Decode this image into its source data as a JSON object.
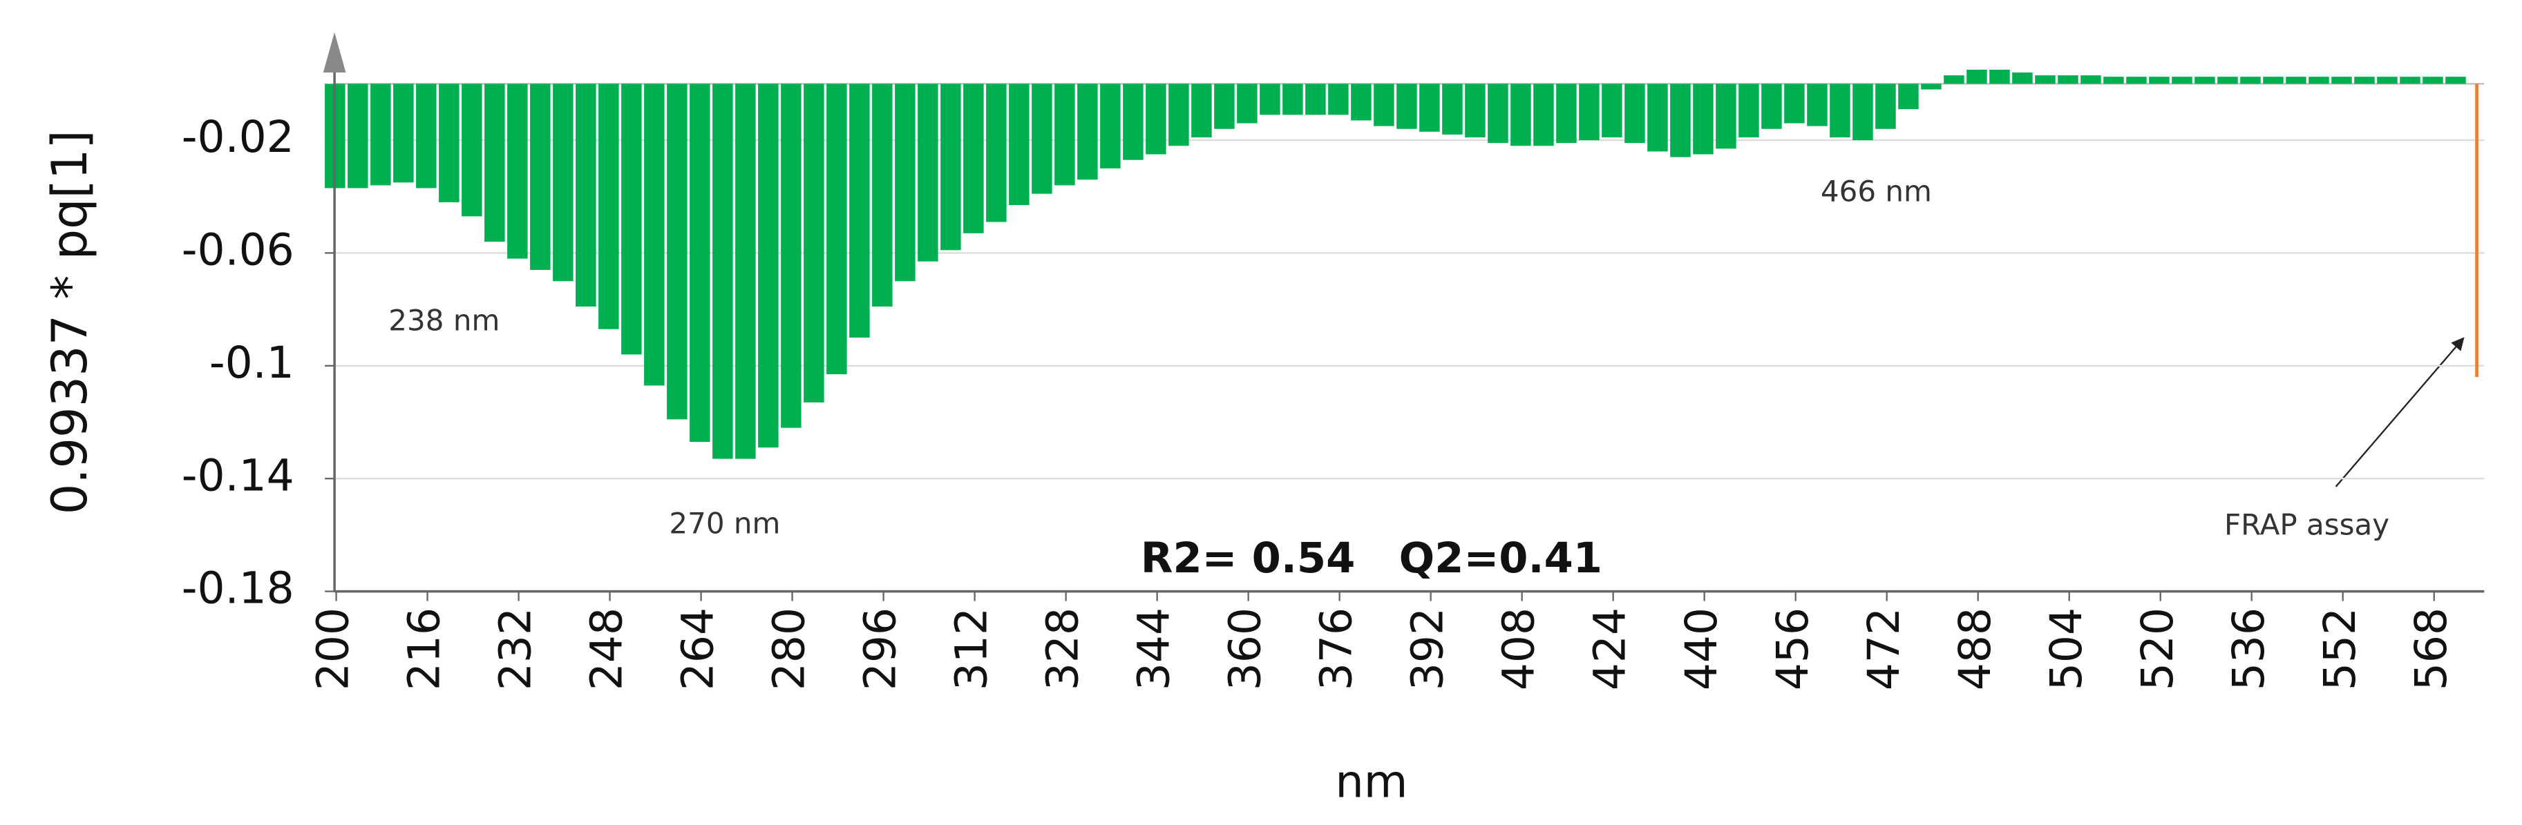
{
  "chart_data": {
    "type": "bar",
    "y_label": "0.99337 * pq[1]",
    "x_label": "nm",
    "xlim": [
      199.7,
      576.8
    ],
    "ylim": [
      -0.18,
      0.004
    ],
    "xticks": [
      200,
      216,
      232,
      248,
      264,
      280,
      296,
      312,
      328,
      344,
      360,
      376,
      392,
      408,
      424,
      440,
      456,
      472,
      488,
      504,
      520,
      536,
      552,
      568
    ],
    "yticks": [
      -0.02,
      -0.06,
      -0.1,
      -0.14,
      -0.18
    ],
    "grid": true,
    "series": [
      {
        "color": "#00b050",
        "x": [
          200,
          204,
          208,
          212,
          216,
          220,
          224,
          228,
          232,
          236,
          240,
          244,
          248,
          252,
          256,
          260,
          264,
          268,
          272,
          276,
          280,
          284,
          288,
          292,
          296,
          300,
          304,
          308,
          312,
          316,
          320,
          324,
          328,
          332,
          336,
          340,
          344,
          348,
          352,
          356,
          360,
          364,
          368,
          372,
          376,
          380,
          384,
          388,
          392,
          396,
          400,
          404,
          408,
          412,
          416,
          420,
          424,
          428,
          432,
          436,
          440,
          444,
          448,
          452,
          456,
          460,
          464,
          468,
          472,
          476,
          480,
          484,
          488,
          492,
          496,
          500,
          504,
          508,
          512,
          516,
          520,
          524,
          528,
          532,
          536,
          540,
          544,
          548,
          552,
          556,
          560,
          564,
          568,
          572
        ],
        "values": [
          -0.037,
          -0.037,
          -0.036,
          -0.035,
          -0.037,
          -0.042,
          -0.047,
          -0.056,
          -0.062,
          -0.066,
          -0.07,
          -0.079,
          -0.087,
          -0.096,
          -0.107,
          -0.119,
          -0.127,
          -0.133,
          -0.133,
          -0.129,
          -0.122,
          -0.113,
          -0.103,
          -0.09,
          -0.079,
          -0.07,
          -0.063,
          -0.059,
          -0.053,
          -0.049,
          -0.043,
          -0.039,
          -0.036,
          -0.034,
          -0.03,
          -0.027,
          -0.025,
          -0.022,
          -0.019,
          -0.016,
          -0.014,
          -0.011,
          -0.011,
          -0.011,
          -0.011,
          -0.013,
          -0.015,
          -0.016,
          -0.017,
          -0.018,
          -0.019,
          -0.021,
          -0.022,
          -0.022,
          -0.021,
          -0.02,
          -0.019,
          -0.021,
          -0.024,
          -0.026,
          -0.025,
          -0.023,
          -0.019,
          -0.016,
          -0.014,
          -0.015,
          -0.019,
          -0.02,
          -0.016,
          -0.009,
          -0.002,
          0.003,
          0.005,
          0.005,
          0.004,
          0.003,
          0.003,
          0.003,
          0.0025,
          0.0025,
          0.0025,
          0.0025,
          0.0025,
          0.0025,
          0.0025,
          0.0025,
          0.0025,
          0.0025,
          0.0025,
          0.0025,
          0.0025,
          0.0025,
          0.0025,
          0.0025
        ]
      },
      {
        "name": "FRAP assay",
        "color": "#ed7d31",
        "x": [
          575.5
        ],
        "values": [
          -0.104
        ]
      }
    ],
    "annotations": [
      "238 nm",
      "270 nm",
      "466 nm",
      "R2= 0.54   Q2=0.41"
    ]
  }
}
